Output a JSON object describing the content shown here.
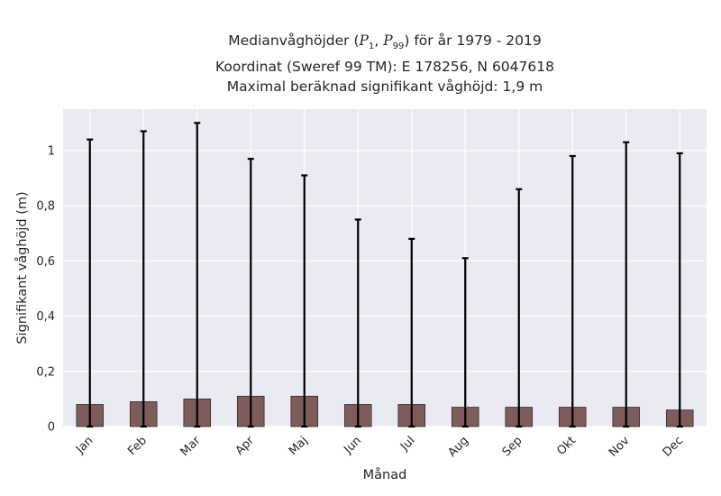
{
  "chart_data": {
    "type": "bar",
    "title_prefix": "Medianvåghöjder (",
    "title_p_low_var": "P",
    "title_p_low_sub": "1",
    "title_sep": ", ",
    "title_p_high_var": "P",
    "title_p_high_sub": "99",
    "title_suffix": ") för år 1979 - 2019",
    "title_line2": "Koordinat (Sweref 99 TM): E 178256, N 6047618",
    "title_line3": "Maximal beräknad signifikant våghöjd: 1,9 m",
    "xlabel": "Månad",
    "ylabel": "Signifikant våghöjd (m)",
    "ylim": [
      0,
      1.15
    ],
    "yticks": [
      0,
      0.2,
      0.4,
      0.6,
      0.8,
      1.0
    ],
    "ytick_labels": [
      "0",
      "0,2",
      "0,4",
      "0,6",
      "0,8",
      "1"
    ],
    "grid": true,
    "categories": [
      "Jan",
      "Feb",
      "Mar",
      "Apr",
      "Maj",
      "Jun",
      "Jul",
      "Aug",
      "Sep",
      "Okt",
      "Nov",
      "Dec"
    ],
    "series": [
      {
        "values": [
          0.08,
          0.09,
          0.1,
          0.11,
          0.11,
          0.08,
          0.08,
          0.07,
          0.07,
          0.07,
          0.07,
          0.06
        ],
        "p1": [
          0.0,
          0.0,
          0.0,
          0.0,
          0.0,
          0.0,
          0.0,
          0.0,
          0.0,
          0.0,
          0.0,
          0.0
        ],
        "p99": [
          1.04,
          1.07,
          1.1,
          0.97,
          0.91,
          0.75,
          0.68,
          0.61,
          0.86,
          0.98,
          1.03,
          0.99
        ]
      }
    ],
    "colors": {
      "bar_fill": "#7d5c5c",
      "bar_edge": "#3a2a2a",
      "errorbar": "#000000",
      "plot_bg": "#eaeaf2",
      "grid": "#ffffff"
    }
  }
}
